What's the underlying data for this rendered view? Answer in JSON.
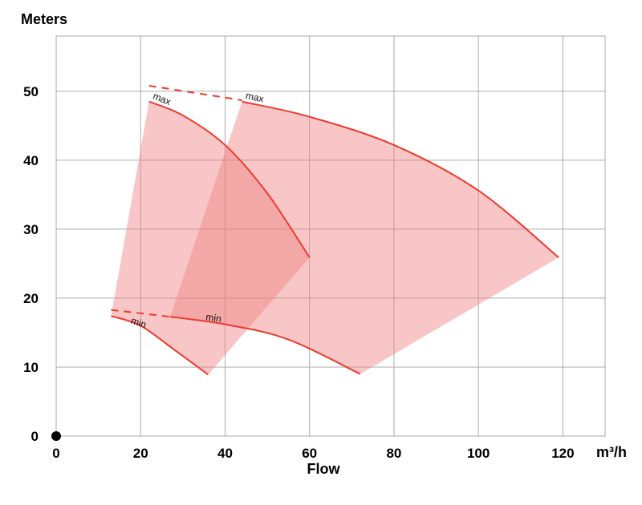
{
  "chart_data": {
    "type": "area",
    "ylabel": "Meters",
    "xlabel": "Flow",
    "xunit": "m³/h",
    "xlim": [
      0,
      130
    ],
    "ylim": [
      0,
      58
    ],
    "xticks": [
      0,
      20,
      40,
      60,
      80,
      100,
      120
    ],
    "yticks": [
      0,
      10,
      20,
      30,
      40,
      50
    ],
    "grid": true,
    "colors": {
      "fill": "#f08080",
      "curve": "#ee3a2f",
      "overlap": "#ec8a84"
    },
    "series": [
      {
        "max_label": "max",
        "min_label": "min",
        "max_curve": [
          [
            22,
            48.5
          ],
          [
            30,
            46.5
          ],
          [
            40,
            42.2
          ],
          [
            50,
            35.2
          ],
          [
            60,
            25.9
          ]
        ],
        "min_curve": [
          [
            13,
            17.4
          ],
          [
            20,
            16
          ],
          [
            28,
            12.5
          ],
          [
            36,
            8.9
          ]
        ],
        "dashed_max_ext": [
          [
            22,
            50.8
          ],
          [
            44,
            48.7
          ]
        ],
        "dashed_min_ext": [
          [
            13,
            18.3
          ],
          [
            27,
            17.3
          ]
        ]
      },
      {
        "max_label": "max",
        "min_label": "min",
        "max_curve": [
          [
            44,
            48.5
          ],
          [
            60,
            46.3
          ],
          [
            80,
            42.2
          ],
          [
            100,
            35.6
          ],
          [
            119,
            25.9
          ]
        ],
        "min_curve": [
          [
            27,
            17.3
          ],
          [
            40,
            16.2
          ],
          [
            55,
            14
          ],
          [
            72,
            9
          ]
        ]
      }
    ],
    "origin_marker": [
      0,
      0
    ]
  }
}
